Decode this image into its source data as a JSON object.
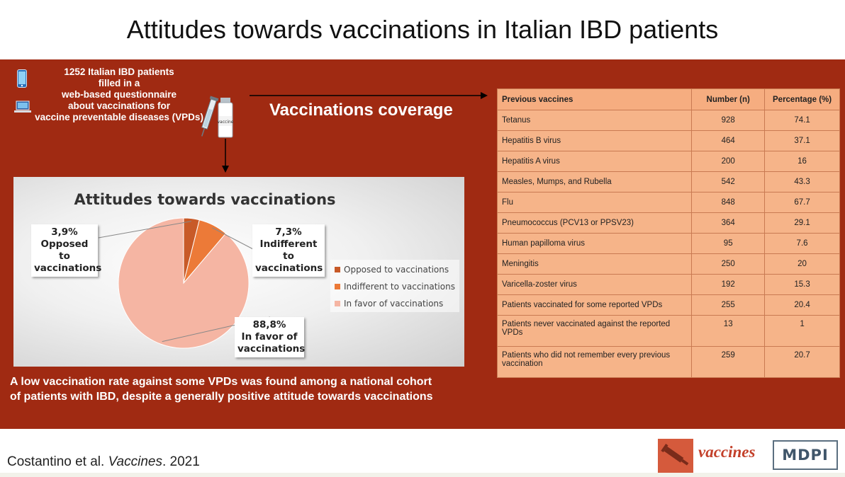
{
  "header": {
    "title": "Attitudes towards vaccinations in Italian IBD patients"
  },
  "intro": {
    "text": "1252 Italian IBD patients filled in a web-based questionnaire about vaccinations for vaccine preventable diseases (VPDs)",
    "lines": [
      "1252 Italian IBD patients",
      "filled in a",
      "web-based questionnaire",
      "about vaccinations for",
      "vaccine preventable diseases (VPDs)"
    ],
    "vial_label": "vaccine",
    "icons": [
      "smartphone-icon",
      "laptop-icon",
      "syringe-vial-icon"
    ]
  },
  "coverage_label": "Vaccinations coverage",
  "chart_data": {
    "type": "pie",
    "title": "Attitudes towards vaccinations",
    "slices": [
      {
        "label": "Opposed to vaccinations",
        "value": 3.9,
        "display": "3,9%",
        "color": "#c85a28"
      },
      {
        "label": "Indifferent to vaccinations",
        "value": 7.3,
        "display": "7,3%",
        "color": "#ec7a38"
      },
      {
        "label": "In favor of vaccinations",
        "value": 88.8,
        "display": "88,8%",
        "color": "#f5b5a3"
      }
    ],
    "callout_labels": [
      [
        "Opposed to",
        "vaccinations"
      ],
      [
        "Indifferent to",
        "vaccinations"
      ],
      [
        "In favor of",
        "vaccinations"
      ]
    ],
    "legend_position": "right"
  },
  "table": {
    "headers": [
      "Previous vaccines",
      "Number (n)",
      "Percentage (%)"
    ],
    "rows": [
      [
        "Tetanus",
        "928",
        "74.1"
      ],
      [
        "Hepatitis B virus",
        "464",
        "37.1"
      ],
      [
        "Hepatitis A virus",
        "200",
        "16"
      ],
      [
        "Measles, Mumps, and Rubella",
        "542",
        "43.3"
      ],
      [
        "Flu",
        "848",
        "67.7"
      ],
      [
        "Pneumococcus (PCV13 or PPSV23)",
        "364",
        "29.1"
      ],
      [
        "Human papilloma virus",
        "95",
        "7.6"
      ],
      [
        "Meningitis",
        "250",
        "20"
      ],
      [
        "Varicella-zoster virus",
        "192",
        "15.3"
      ],
      [
        "Patients vaccinated for some reported VPDs",
        "255",
        "20.4"
      ],
      [
        "Patients never vaccinated against the reported VPDs",
        "13",
        "1"
      ],
      [
        "Patients who did not remember every previous vaccination",
        "259",
        "20.7"
      ]
    ]
  },
  "conclusion": {
    "line1": "A low vaccination rate against some VPDs was found among a national cohort",
    "line2": "of patients with IBD,  despite a generally positive attitude towards vaccinations"
  },
  "footer": {
    "citation_authors": "Costantino et al. ",
    "citation_journal": "Vaccines",
    "citation_year": ". 2021",
    "journal_name": "vaccines",
    "publisher": "MDPI"
  },
  "colors": {
    "panel": "#a02a12",
    "table_fill": "#f6b489",
    "journal_red": "#c3402a"
  }
}
